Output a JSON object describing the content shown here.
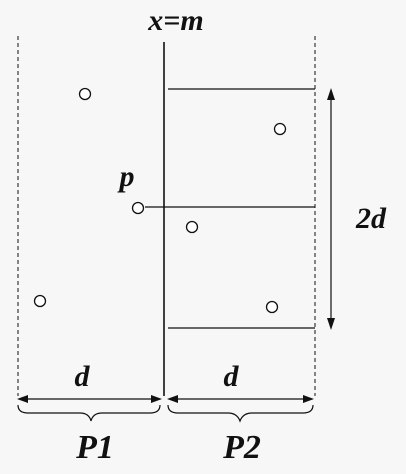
{
  "labels": {
    "x_eq_m": "x=m",
    "p": "p",
    "two_d": "2d",
    "d_left": "d",
    "d_right": "d",
    "p1": "P1",
    "p2": "P2"
  },
  "colors": {
    "ink": "#111111",
    "background": "#f7f7f7",
    "point_fill": "#ffffff"
  }
}
